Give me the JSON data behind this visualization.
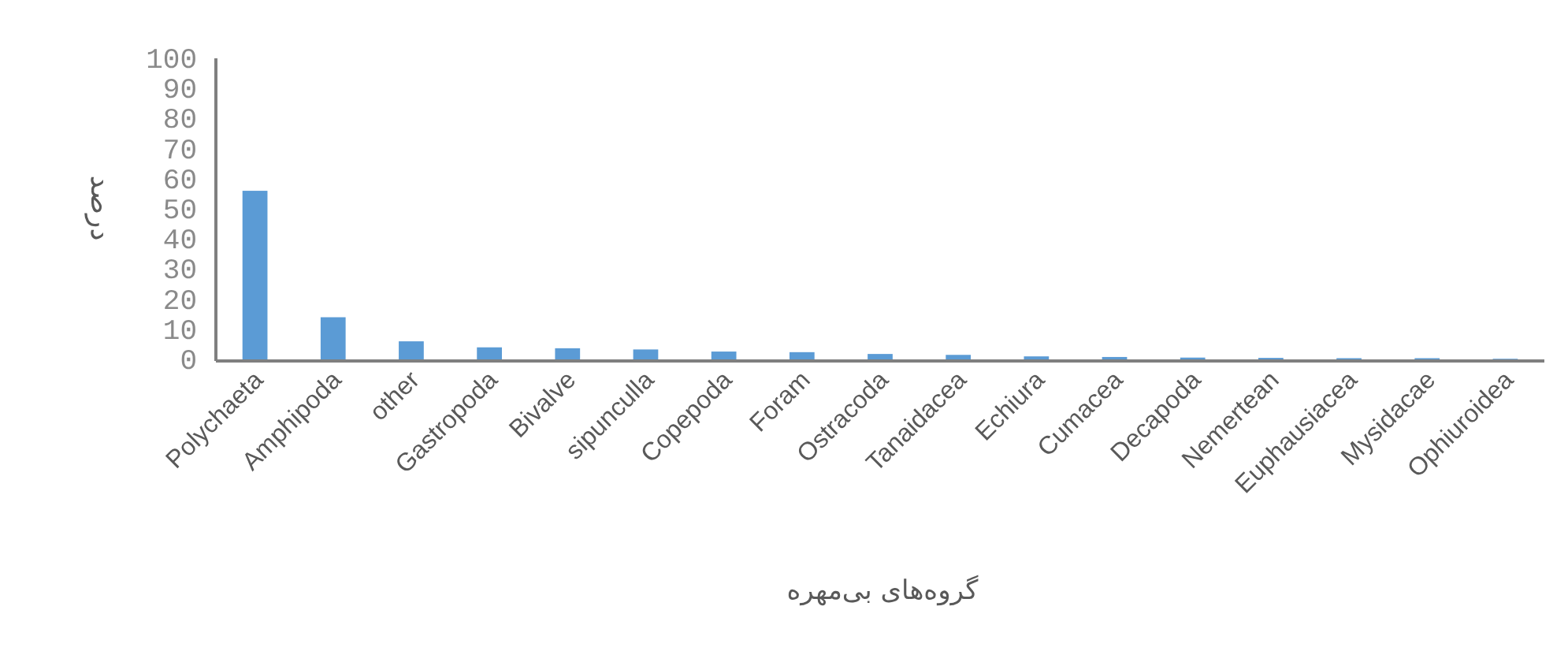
{
  "chart_data": {
    "type": "bar",
    "xlabel": "گروه‌های بی‌مهره",
    "ylabel": "درصد",
    "categories": [
      "Polychaeta",
      "Amphipoda",
      "other",
      "Gastropoda",
      "Bivalve",
      "sipunculla",
      "Copepoda",
      "Foram",
      "Ostracoda",
      "Tanaidacea",
      "Echiura",
      "Cumacea",
      "Decapoda",
      "Nemertean",
      "Euphausiacea",
      "Mysidacae",
      "Ophiuroidea"
    ],
    "series": [
      {
        "color": "#5b9bd5",
        "values": [
          56,
          14,
          6,
          4,
          3.7,
          3.3,
          2.6,
          2.4,
          1.8,
          1.5,
          1,
          0.8,
          0.6,
          0.5,
          0.4,
          0.4,
          0.2
        ]
      }
    ],
    "ylim": [
      0,
      100
    ],
    "yticks": [
      0,
      10,
      20,
      30,
      40,
      50,
      60,
      70,
      80,
      90,
      100
    ],
    "grid": false
  }
}
